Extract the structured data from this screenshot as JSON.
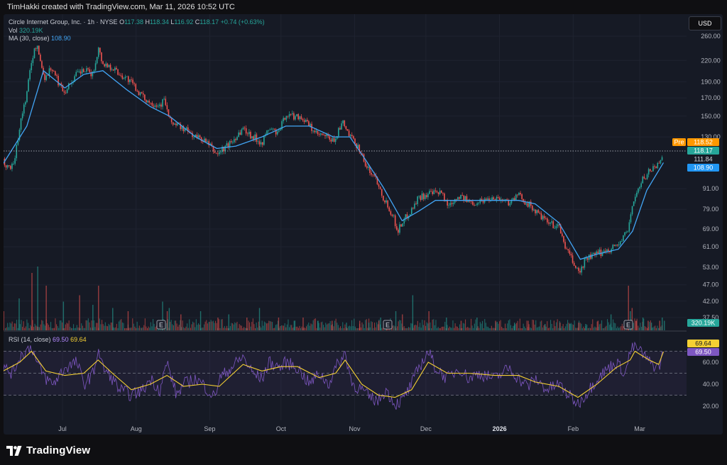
{
  "header": {
    "caption": "TimHakki created with TradingView.com, Mar 11, 2026 10:52 UTC"
  },
  "legend": {
    "symbol_line": "Circle Internet Group, Inc. · 1h · NYSE",
    "o_label": "O",
    "o_value": "117.38",
    "h_label": "H",
    "h_value": "118.34",
    "l_label": "L",
    "l_value": "116.92",
    "c_label": "C",
    "c_value": "118.17",
    "change": "+0.74 (+0.63%)",
    "vol_label": "Vol",
    "vol_value": "320.19K",
    "ma_label": "MA (30, close)",
    "ma_value": "108.90",
    "rsi_label": "RSI (14, close)",
    "rsi_value": "69.50",
    "rsi_ma_value": "69.64"
  },
  "currency": "USD",
  "price_badges": {
    "pre_label": "Pre",
    "pre_value": "118.52",
    "last_value": "118.17",
    "mid_value": "111.84",
    "ma_value": "108.90",
    "vol_value": "320.19K",
    "rsi_ma_value": "69.64",
    "rsi_value": "69.50"
  },
  "earnings_markers": [
    "E",
    "E",
    "E"
  ],
  "brand": "TradingView",
  "colors": {
    "up": "#26a69a",
    "down": "#ef5350",
    "ma": "#42a5f5",
    "rsi": "#7e57c2",
    "rsi_ma": "#f5d033",
    "pre": "#ff9800"
  },
  "chart_data": [
    {
      "type": "candlestick",
      "title": "Circle Internet Group, Inc. · 1h · NYSE",
      "scale": "log",
      "y_ticks": [
        "260.00",
        "220.00",
        "190.00",
        "170.00",
        "150.00",
        "130.00",
        "111.84",
        "91.00",
        "79.00",
        "69.00",
        "61.00",
        "53.00",
        "47.00",
        "42.00",
        "37.50"
      ],
      "x_ticks": [
        "Jul",
        "Aug",
        "Sep",
        "Oct",
        "Nov",
        "Dec",
        "2026",
        "Feb",
        "Mar"
      ],
      "price_path": [
        [
          "Jun 6",
          110
        ],
        [
          "Jun 9",
          105
        ],
        [
          "Jun 11",
          112
        ],
        [
          "Jun 13",
          140
        ],
        [
          "Jun 16",
          175
        ],
        [
          "Jun 18",
          220
        ],
        [
          "Jun 20",
          245
        ],
        [
          "Jun 23",
          200
        ],
        [
          "Jun 24",
          195
        ],
        [
          "Jun 26",
          210
        ],
        [
          "Jun 30",
          185
        ],
        [
          "Jul 2",
          178
        ],
        [
          "Jul 7",
          200
        ],
        [
          "Jul 10",
          205
        ],
        [
          "Jul 14",
          200
        ],
        [
          "Jul 16",
          240
        ],
        [
          "Jul 18",
          215
        ],
        [
          "Jul 22",
          210
        ],
        [
          "Jul 25",
          200
        ],
        [
          "Jul 28",
          195
        ],
        [
          "Jul 31",
          185
        ],
        [
          "Aug 4",
          170
        ],
        [
          "Aug 7",
          165
        ],
        [
          "Aug 11",
          162
        ],
        [
          "Aug 13",
          168
        ],
        [
          "Aug 15",
          145
        ],
        [
          "Aug 19",
          140
        ],
        [
          "Aug 22",
          136
        ],
        [
          "Aug 26",
          130
        ],
        [
          "Aug 29",
          128
        ],
        [
          "Sep 2",
          120
        ],
        [
          "Sep 4",
          115
        ],
        [
          "Sep 5",
          117
        ],
        [
          "Sep 10",
          125
        ],
        [
          "Sep 15",
          138
        ],
        [
          "Sep 18",
          132
        ],
        [
          "Sep 23",
          125
        ],
        [
          "Sep 26",
          138
        ],
        [
          "Sep 30",
          133
        ],
        [
          "Oct 3",
          152
        ],
        [
          "Oct 6",
          150
        ],
        [
          "Oct 9",
          150
        ],
        [
          "Oct 13",
          140
        ],
        [
          "Oct 16",
          132
        ],
        [
          "Oct 20",
          130
        ],
        [
          "Oct 23",
          126
        ],
        [
          "Oct 27",
          143
        ],
        [
          "Oct 30",
          130
        ],
        [
          "Nov 3",
          120
        ],
        [
          "Nov 6",
          105
        ],
        [
          "Nov 10",
          98
        ],
        [
          "Nov 13",
          86
        ],
        [
          "Nov 17",
          76
        ],
        [
          "Nov 19",
          68
        ],
        [
          "Nov 21",
          72
        ],
        [
          "Nov 25",
          79
        ],
        [
          "Nov 28",
          86
        ],
        [
          "Dec 3",
          88
        ],
        [
          "Dec 8",
          88
        ],
        [
          "Dec 10",
          81
        ],
        [
          "Dec 15",
          87
        ],
        [
          "Dec 19",
          83
        ],
        [
          "Dec 22",
          83
        ],
        [
          "Dec 30",
          86
        ],
        [
          "Jan 5",
          83
        ],
        [
          "Jan 9",
          87
        ],
        [
          "Jan 13",
          82
        ],
        [
          "Jan 16",
          78
        ],
        [
          "Jan 21",
          72
        ],
        [
          "Jan 26",
          70
        ],
        [
          "Jan 29",
          60
        ],
        [
          "Feb 2",
          53
        ],
        [
          "Feb 4",
          51
        ],
        [
          "Feb 6",
          56
        ],
        [
          "Feb 11",
          58
        ],
        [
          "Feb 16",
          60
        ],
        [
          "Feb 20",
          62
        ],
        [
          "Feb 24",
          68
        ],
        [
          "Feb 26",
          82
        ],
        [
          "Mar 2",
          96
        ],
        [
          "Mar 5",
          103
        ],
        [
          "Mar 9",
          108
        ],
        [
          "Mar 11",
          118.17
        ]
      ],
      "ma30_path": [
        [
          "Jun 6",
          108
        ],
        [
          "Jun 16",
          140
        ],
        [
          "Jun 23",
          205
        ],
        [
          "Jul 2",
          182
        ],
        [
          "Jul 10",
          200
        ],
        [
          "Jul 18",
          205
        ],
        [
          "Jul 28",
          180
        ],
        [
          "Aug 7",
          160
        ],
        [
          "Aug 15",
          150
        ],
        [
          "Aug 26",
          130
        ],
        [
          "Sep 4",
          120
        ],
        [
          "Sep 12",
          122
        ],
        [
          "Sep 23",
          130
        ],
        [
          "Oct 3",
          140
        ],
        [
          "Oct 13",
          140
        ],
        [
          "Oct 23",
          130
        ],
        [
          "Oct 30",
          130
        ],
        [
          "Nov 6",
          110
        ],
        [
          "Nov 13",
          92
        ],
        [
          "Nov 21",
          73
        ],
        [
          "Nov 28",
          78
        ],
        [
          "Dec 5",
          84
        ],
        [
          "Dec 15",
          84
        ],
        [
          "Dec 30",
          84
        ],
        [
          "Jan 9",
          84
        ],
        [
          "Jan 16",
          82
        ],
        [
          "Jan 26",
          72
        ],
        [
          "Feb 4",
          56
        ],
        [
          "Feb 11",
          58
        ],
        [
          "Feb 20",
          60
        ],
        [
          "Feb 26",
          68
        ],
        [
          "Mar 4",
          90
        ],
        [
          "Mar 11",
          108.9
        ]
      ]
    },
    {
      "type": "bar",
      "title": "Vol",
      "value_label": "320.19K",
      "relative_volume": [
        0.3,
        0.5,
        0.9,
        1.0,
        0.7,
        0.45,
        0.55,
        0.4,
        0.7,
        0.35,
        0.3,
        0.45,
        0.3,
        0.35,
        0.25,
        0.3,
        0.2,
        0.25,
        0.2,
        0.35,
        0.2,
        0.15,
        0.2,
        0.15,
        0.15,
        0.12,
        0.15,
        0.12,
        0.15,
        0.2,
        0.15,
        0.3,
        0.25,
        0.55,
        0.3,
        0.2,
        0.15,
        0.2,
        0.15,
        0.12,
        0.15,
        0.1,
        0.12,
        0.1,
        0.12,
        0.1,
        0.15,
        0.25,
        0.7,
        0.3,
        0.15,
        0.2,
        0.15,
        0.12,
        0.15,
        0.2,
        0.35,
        0.15
      ],
      "volume_dates": [
        "Jun 6",
        "Jun 13",
        "Jun 18",
        "Jun 20",
        "Jun 24",
        "Jul 1",
        "Jul 8",
        "Jul 14",
        "Jul 16",
        "Jul 22",
        "Jul 28",
        "Aug 12",
        "Aug 14",
        "Aug 15",
        "Aug 20",
        "Aug 28",
        "Sep 4",
        "Sep 9",
        "Sep 16",
        "Sep 22",
        "Sep 30",
        "Oct 6",
        "Oct 10",
        "Oct 16",
        "Oct 22",
        "Oct 28",
        "Nov 3",
        "Nov 7",
        "Nov 11",
        "Nov 12",
        "Nov 14",
        "Nov 18",
        "Nov 21",
        "Nov 25",
        "Dec 2",
        "Dec 9",
        "Dec 16",
        "Dec 22",
        "Dec 30",
        "Jan 7",
        "Jan 13",
        "Jan 20",
        "Jan 26",
        "Jan 30",
        "Feb 3",
        "Feb 6",
        "Feb 11",
        "Feb 17",
        "Feb 24",
        "Feb 25",
        "Feb 27",
        "Mar 2",
        "Mar 4",
        "Mar 6",
        "Mar 9",
        "Mar 10",
        "Feb 26",
        "Mar 11"
      ]
    },
    {
      "type": "line",
      "title": "RSI (14, close)",
      "y_ticks": [
        "60.00",
        "40.00",
        "20.00"
      ],
      "ylim": [
        15,
        80
      ],
      "levels": [
        70,
        50,
        30
      ],
      "rsi_path": [
        [
          "Jun 6",
          55
        ],
        [
          "Jun 10",
          50
        ],
        [
          "Jun 13",
          65
        ],
        [
          "Jun 18",
          75
        ],
        [
          "Jun 20",
          60
        ],
        [
          "Jun 24",
          45
        ],
        [
          "Jun 27",
          40
        ],
        [
          "Jul 2",
          55
        ],
        [
          "Jul 7",
          60
        ],
        [
          "Jul 10",
          40
        ],
        [
          "Jul 14",
          50
        ],
        [
          "Jul 16",
          72
        ],
        [
          "Jul 18",
          55
        ],
        [
          "Jul 22",
          45
        ],
        [
          "Jul 25",
          35
        ],
        [
          "Jul 30",
          30
        ],
        [
          "Aug 4",
          35
        ],
        [
          "Aug 7",
          45
        ],
        [
          "Aug 11",
          35
        ],
        [
          "Aug 14",
          60
        ],
        [
          "Aug 18",
          30
        ],
        [
          "Aug 21",
          40
        ],
        [
          "Aug 26",
          45
        ],
        [
          "Aug 29",
          40
        ],
        [
          "Sep 3",
          28
        ],
        [
          "Sep 5",
          45
        ],
        [
          "Sep 10",
          55
        ],
        [
          "Sep 15",
          65
        ],
        [
          "Sep 19",
          50
        ],
        [
          "Sep 23",
          45
        ],
        [
          "Sep 26",
          60
        ],
        [
          "Oct 1",
          55
        ],
        [
          "Oct 3",
          60
        ],
        [
          "Oct 8",
          55
        ],
        [
          "Oct 13",
          40
        ],
        [
          "Oct 17",
          50
        ],
        [
          "Oct 21",
          40
        ],
        [
          "Oct 24",
          55
        ],
        [
          "Oct 28",
          68
        ],
        [
          "Oct 31",
          40
        ],
        [
          "Nov 4",
          35
        ],
        [
          "Nov 7",
          28
        ],
        [
          "Nov 11",
          25
        ],
        [
          "Nov 14",
          35
        ],
        [
          "Nov 18",
          22
        ],
        [
          "Nov 21",
          25
        ],
        [
          "Nov 25",
          40
        ],
        [
          "Nov 28",
          55
        ],
        [
          "Dec 2",
          70
        ],
        [
          "Dec 5",
          55
        ],
        [
          "Dec 10",
          45
        ],
        [
          "Dec 15",
          55
        ],
        [
          "Dec 19",
          45
        ],
        [
          "Dec 23",
          50
        ],
        [
          "Dec 30",
          45
        ],
        [
          "Jan 5",
          55
        ],
        [
          "Jan 9",
          45
        ],
        [
          "Jan 13",
          38
        ],
        [
          "Jan 16",
          45
        ],
        [
          "Jan 21",
          35
        ],
        [
          "Jan 26",
          40
        ],
        [
          "Jan 30",
          30
        ],
        [
          "Feb 3",
          22
        ],
        [
          "Feb 6",
          30
        ],
        [
          "Feb 11",
          45
        ],
        [
          "Feb 16",
          55
        ],
        [
          "Feb 19",
          60
        ],
        [
          "Feb 23",
          50
        ],
        [
          "Feb 25",
          70
        ],
        [
          "Feb 27",
          75
        ],
        [
          "Mar 2",
          68
        ],
        [
          "Mar 5",
          60
        ],
        [
          "Mar 9",
          55
        ],
        [
          "Mar 11",
          69.5
        ]
      ],
      "rsi_ma_path": [
        [
          "Jun 6",
          52
        ],
        [
          "Jun 13",
          60
        ],
        [
          "Jun 18",
          70
        ],
        [
          "Jun 24",
          52
        ],
        [
          "Jul 2",
          48
        ],
        [
          "Jul 10",
          50
        ],
        [
          "Jul 16",
          62
        ],
        [
          "Jul 22",
          50
        ],
        [
          "Jul 30",
          35
        ],
        [
          "Aug 7",
          40
        ],
        [
          "Aug 14",
          48
        ],
        [
          "Aug 21",
          38
        ],
        [
          "Aug 29",
          40
        ],
        [
          "Sep 5",
          38
        ],
        [
          "Sep 15",
          58
        ],
        [
          "Sep 23",
          52
        ],
        [
          "Oct 1",
          56
        ],
        [
          "Oct 8",
          56
        ],
        [
          "Oct 17",
          46
        ],
        [
          "Oct 24",
          50
        ],
        [
          "Oct 28",
          62
        ],
        [
          "Nov 4",
          40
        ],
        [
          "Nov 11",
          30
        ],
        [
          "Nov 18",
          28
        ],
        [
          "Nov 25",
          35
        ],
        [
          "Dec 2",
          60
        ],
        [
          "Dec 10",
          50
        ],
        [
          "Dec 19",
          50
        ],
        [
          "Dec 30",
          48
        ],
        [
          "Jan 9",
          48
        ],
        [
          "Jan 16",
          42
        ],
        [
          "Jan 26",
          38
        ],
        [
          "Feb 3",
          28
        ],
        [
          "Feb 11",
          40
        ],
        [
          "Feb 19",
          55
        ],
        [
          "Feb 25",
          62
        ],
        [
          "Feb 27",
          70
        ],
        [
          "Mar 5",
          62
        ],
        [
          "Mar 9",
          58
        ],
        [
          "Mar 11",
          69.64
        ]
      ]
    }
  ]
}
